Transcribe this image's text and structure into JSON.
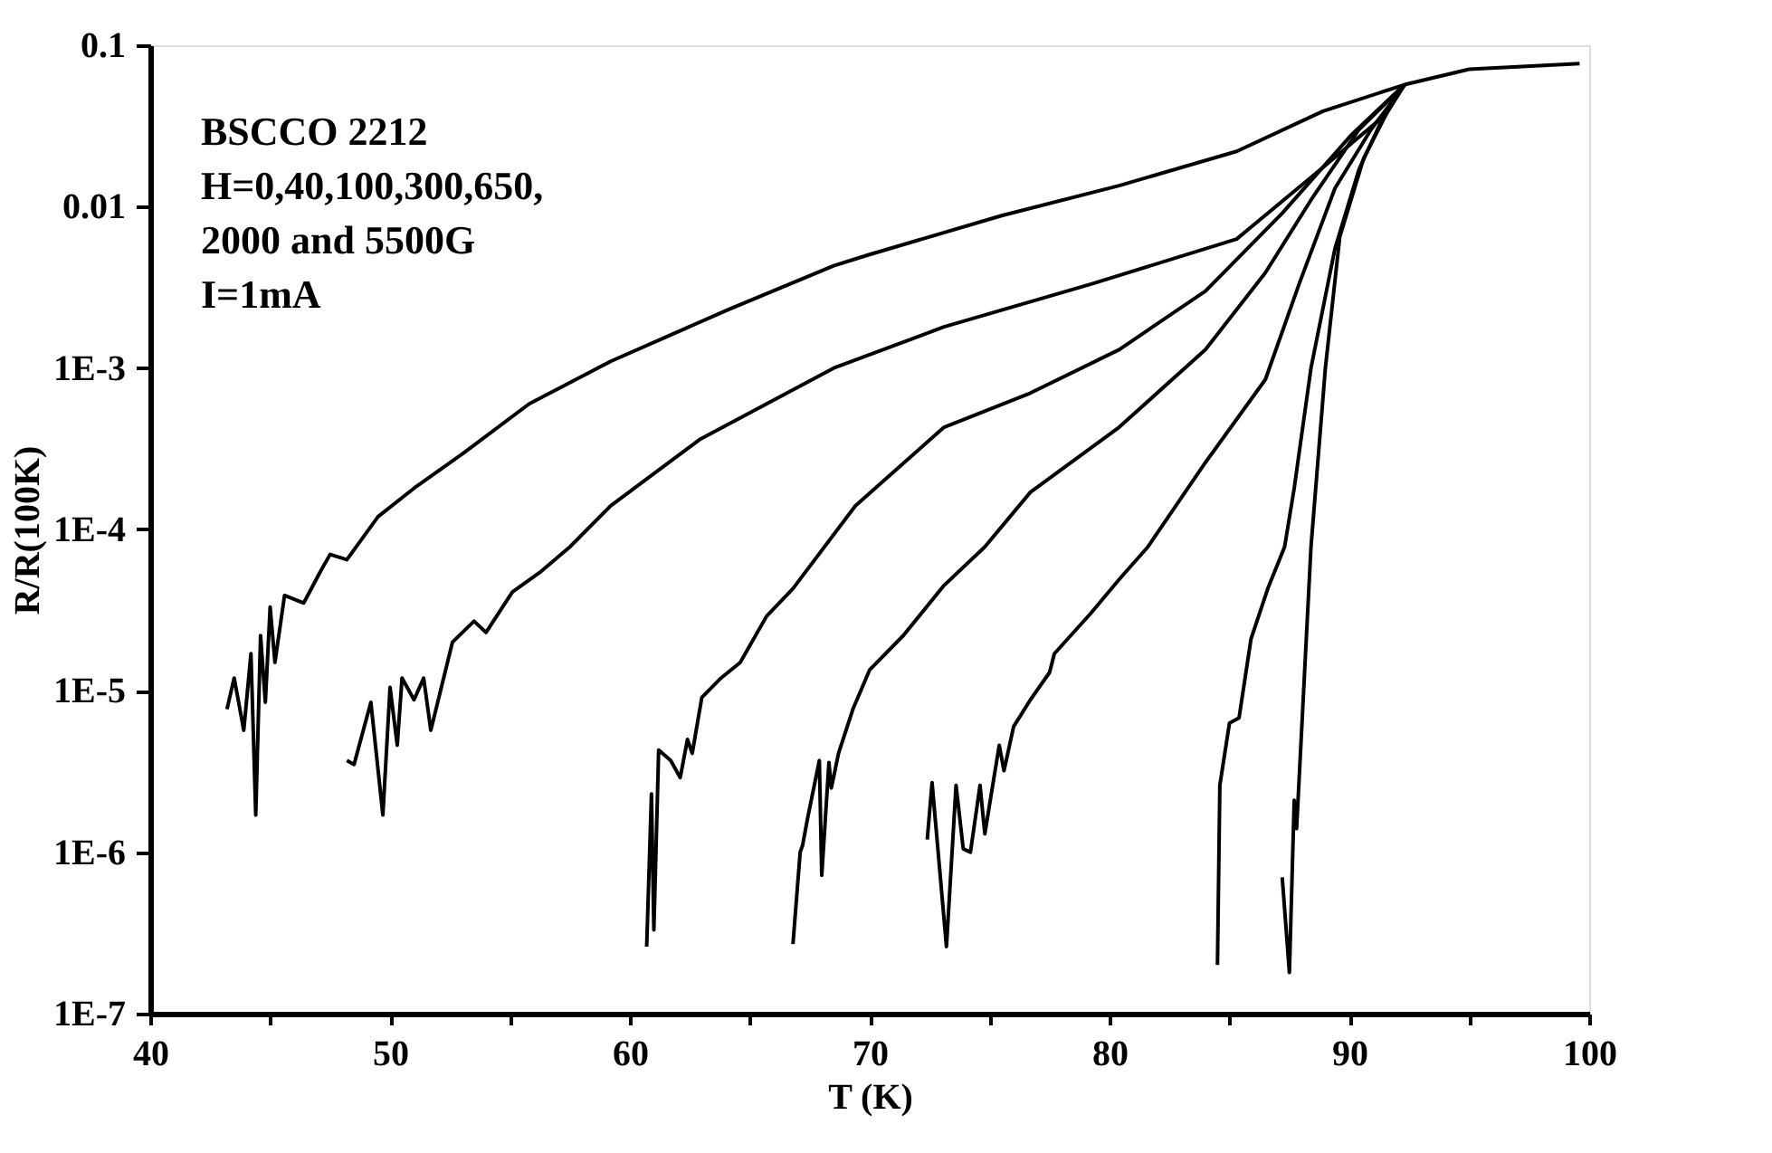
{
  "chart_data": {
    "type": "line",
    "xlabel": "T (K)",
    "ylabel": "R/R(100K)",
    "annotations": [
      "BSCCO 2212",
      "H=0,40,100,300,650,",
      "2000 and 5500G",
      "I=1mA"
    ],
    "log": "y",
    "grid": false,
    "legend": false,
    "marker": "none",
    "line_style": "solid",
    "xlim": [
      40,
      100
    ],
    "ylim": [
      1e-07,
      0.1
    ],
    "xticks": [
      40,
      {
        "value": 45,
        "label": null
      },
      50,
      {
        "value": 55,
        "label": null
      },
      60,
      {
        "value": 65,
        "label": null
      },
      70,
      {
        "value": 75,
        "label": null
      },
      80,
      {
        "value": 85,
        "label": null
      },
      90,
      {
        "value": 95,
        "label": null
      },
      100
    ],
    "yticks": [
      0.1,
      0.01,
      {
        "value": 0.001,
        "label": "1E-3"
      },
      {
        "value": 0.0001,
        "label": "1E-4"
      },
      {
        "value": 1e-05,
        "label": "1E-5"
      },
      {
        "value": 1e-06,
        "label": "1E-6"
      },
      {
        "value": 1e-07,
        "label": "1E-7"
      }
    ],
    "series": [
      {
        "color": "#000000",
        "x": [
          43.2,
          43.5,
          43.9,
          44.2,
          44.4,
          44.6,
          44.8,
          45.0,
          45.2,
          45.6,
          46.4,
          47.1,
          47.5,
          48.2,
          49.5,
          51.0,
          53.1,
          55.8,
          59.2,
          64.1,
          68.5,
          69.9,
          75.5,
          80.4,
          85.3,
          88.9,
          92.3,
          95.0,
          99.6
        ],
        "values": [
          7.7e-06,
          1.2e-05,
          5.7e-06,
          1.7e-05,
          1.7e-06,
          2.2e-05,
          8.5e-06,
          3.3e-05,
          1.5e-05,
          3.9e-05,
          3.5e-05,
          5.5e-05,
          7e-05,
          6.5e-05,
          0.00012,
          0.00018,
          0.0003,
          0.0006,
          0.0011,
          0.0023,
          0.0043,
          0.005,
          0.0088,
          0.0135,
          0.022,
          0.039,
          0.057,
          0.071,
          0.077
        ]
      },
      {
        "color": "#000000",
        "x": [
          48.2,
          48.5,
          49.2,
          49.7,
          50.0,
          50.3,
          50.5,
          51.0,
          51.4,
          51.7,
          52.6,
          53.5,
          54.0,
          55.1,
          56.3,
          57.5,
          59.2,
          62.9,
          68.5,
          73.1,
          79.2,
          85.3,
          88.9,
          91.4,
          92.3
        ],
        "values": [
          3.7e-06,
          3.5e-06,
          8.5e-06,
          1.7e-06,
          1.05e-05,
          4.6e-06,
          1.2e-05,
          8.8e-06,
          1.2e-05,
          5.7e-06,
          2e-05,
          2.7e-05,
          2.3e-05,
          4.1e-05,
          5.5e-05,
          7.8e-05,
          0.00014,
          0.00036,
          0.001,
          0.0018,
          0.0033,
          0.0063,
          0.0175,
          0.036,
          0.057
        ]
      },
      {
        "color": "#000000",
        "x": [
          60.7,
          60.9,
          61.0,
          61.2,
          61.7,
          62.1,
          62.4,
          62.6,
          63.0,
          63.8,
          64.6,
          65.7,
          66.8,
          69.4,
          73.1,
          76.7,
          80.4,
          84.0,
          87.2,
          90.1,
          92.3
        ],
        "values": [
          2.6e-07,
          2.3e-06,
          3.3e-07,
          4.3e-06,
          3.7e-06,
          2.9e-06,
          5e-06,
          4.1e-06,
          9.1e-06,
          1.2e-05,
          1.5e-05,
          2.9e-05,
          4.3e-05,
          0.00014,
          0.00043,
          0.0007,
          0.0013,
          0.003,
          0.0091,
          0.028,
          0.057
        ]
      },
      {
        "color": "#000000",
        "x": [
          66.8,
          67.1,
          67.2,
          67.4,
          67.9,
          68.0,
          68.3,
          68.4,
          68.7,
          69.3,
          70.0,
          71.4,
          73.1,
          74.8,
          76.7,
          80.4,
          84.0,
          86.5,
          88.4,
          90.4,
          92.3
        ],
        "values": [
          2.7e-07,
          1e-06,
          1.1e-06,
          1.6e-06,
          3.7e-06,
          7.2e-07,
          3.6e-06,
          2.5e-06,
          4.1e-06,
          7.7e-06,
          1.35e-05,
          2.2e-05,
          4.5e-05,
          7.8e-05,
          0.00017,
          0.00043,
          0.0013,
          0.0039,
          0.011,
          0.03,
          0.057
        ]
      },
      {
        "color": "#000000",
        "x": [
          72.4,
          72.6,
          73.2,
          73.6,
          73.9,
          74.2,
          74.6,
          74.8,
          75.4,
          75.6,
          76.0,
          76.7,
          77.5,
          77.7,
          79.2,
          80.4,
          81.6,
          84.0,
          86.5,
          87.9,
          89.4,
          90.9,
          92.3
        ],
        "values": [
          1.2e-06,
          2.7e-06,
          2.6e-07,
          2.6e-06,
          1.05e-06,
          1e-06,
          2.6e-06,
          1.3e-06,
          4.6e-06,
          3.2e-06,
          6e-06,
          8.8e-06,
          1.3e-05,
          1.7e-05,
          3e-05,
          4.9e-05,
          7.8e-05,
          0.00026,
          0.00085,
          0.0033,
          0.013,
          0.03,
          0.057
        ]
      },
      {
        "color": "#000000",
        "x": [
          84.5,
          84.6,
          85.0,
          85.4,
          85.9,
          86.6,
          87.3,
          87.7,
          88.4,
          89.4,
          90.4,
          91.3,
          92.3
        ],
        "values": [
          2e-07,
          2.6e-06,
          6.3e-06,
          6.8e-06,
          2.1e-05,
          4.3e-05,
          7.8e-05,
          0.00018,
          0.001,
          0.0055,
          0.017,
          0.033,
          0.057
        ]
      },
      {
        "color": "#000000",
        "x": [
          87.2,
          87.5,
          87.7,
          87.8,
          88.4,
          89.0,
          89.6,
          90.6,
          91.6,
          92.3
        ],
        "values": [
          7e-07,
          1.8e-07,
          2.1e-06,
          1.4e-06,
          7.8e-05,
          0.001,
          0.0065,
          0.02,
          0.039,
          0.057
        ]
      }
    ]
  }
}
